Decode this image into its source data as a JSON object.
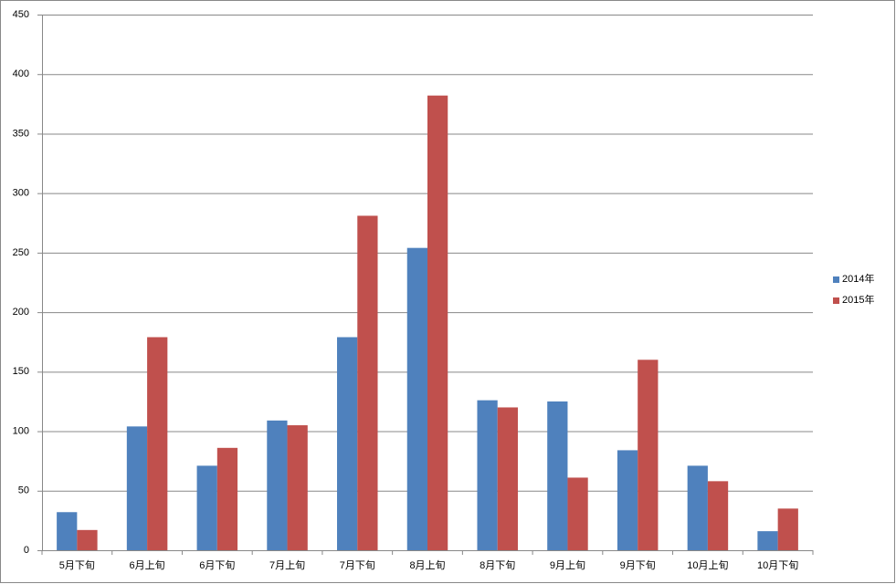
{
  "chart_data": {
    "type": "bar",
    "categories": [
      "5月下旬",
      "6月上旬",
      "6月下旬",
      "7月上旬",
      "7月下旬",
      "8月上旬",
      "8月下旬",
      "9月上旬",
      "9月下旬",
      "10月上旬",
      "10月下旬"
    ],
    "series": [
      {
        "name": "2014年",
        "color": "#4f81bd",
        "values": [
          32,
          104,
          71,
          109,
          179,
          254,
          126,
          125,
          84,
          71,
          16
        ]
      },
      {
        "name": "2015年",
        "color": "#c0504d",
        "values": [
          17,
          179,
          86,
          105,
          281,
          382,
          120,
          61,
          160,
          58,
          35
        ]
      }
    ],
    "ylim": [
      0,
      450
    ],
    "yticks": [
      0,
      50,
      100,
      150,
      200,
      250,
      300,
      350,
      400,
      450
    ],
    "grid": true,
    "legend": "right"
  }
}
